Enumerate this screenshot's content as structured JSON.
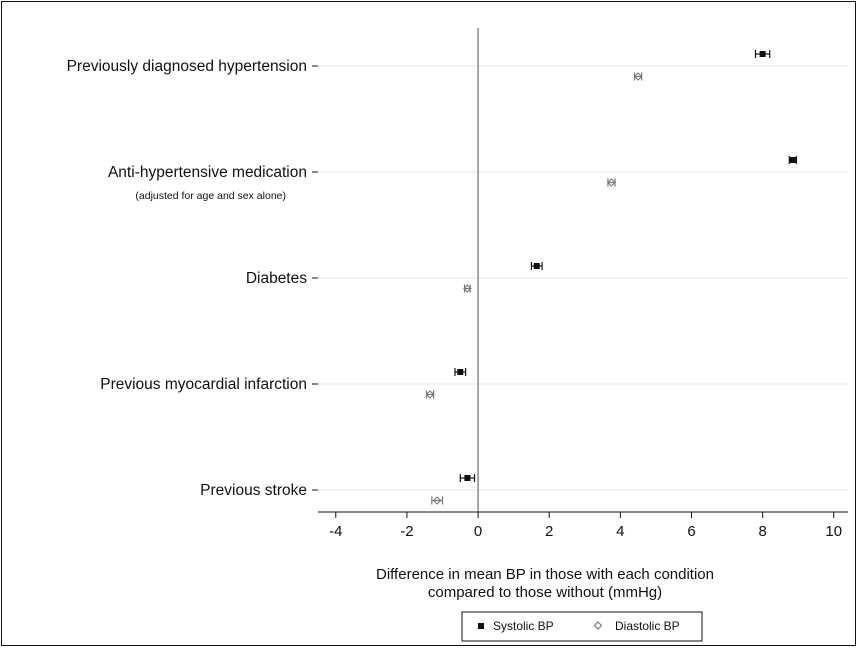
{
  "chart_data": {
    "type": "scatter",
    "subtype": "forest-plot",
    "title": "",
    "xlabel_lines": [
      "Difference in mean BP in those with each condition",
      "compared to those without (mmHg)"
    ],
    "ylabel": "",
    "xlim": [
      -4.5,
      10.4
    ],
    "xticks": [
      -4,
      -2,
      0,
      2,
      4,
      6,
      8,
      10
    ],
    "xtick_labels": [
      "-4",
      "-2",
      "0",
      "2",
      "4",
      "6",
      "8",
      "10"
    ],
    "reference_line_x": 0,
    "grid": "horizontal lines at each category",
    "legend_position": "bottom-center",
    "categories": [
      {
        "label": "Previously diagnosed hypertension",
        "sublabel": ""
      },
      {
        "label": "Anti-hypertensive medication",
        "sublabel": "(adjusted for age and sex alone)"
      },
      {
        "label": "Diabetes",
        "sublabel": ""
      },
      {
        "label": "Previous myocardial infarction",
        "sublabel": ""
      },
      {
        "label": "Previous stroke",
        "sublabel": ""
      }
    ],
    "series": [
      {
        "name": "Systolic BP",
        "marker": "filled-square",
        "color": "#111111",
        "estimates": [
          8.0,
          8.85,
          1.65,
          -0.5,
          -0.3
        ],
        "ci_low": [
          7.8,
          8.75,
          1.5,
          -0.65,
          -0.5
        ],
        "ci_high": [
          8.2,
          8.95,
          1.8,
          -0.35,
          -0.1
        ]
      },
      {
        "name": "Diastolic BP",
        "marker": "hollow-diamond",
        "color": "#777777",
        "estimates": [
          4.5,
          3.75,
          -0.3,
          -1.35,
          -1.15
        ],
        "ci_low": [
          4.4,
          3.65,
          -0.38,
          -1.45,
          -1.3
        ],
        "ci_high": [
          4.6,
          3.85,
          -0.22,
          -1.25,
          -1.0
        ]
      }
    ]
  }
}
